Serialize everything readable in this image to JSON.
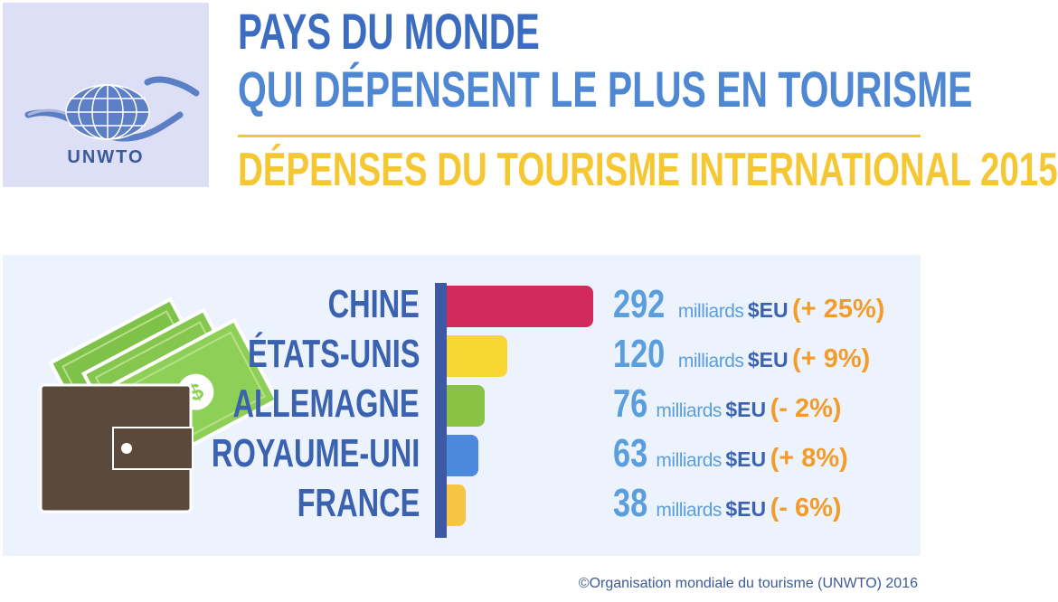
{
  "logo": {
    "text": "UNWTO"
  },
  "header": {
    "title_line1": "PAYS DU MONDE",
    "title_line2": "QUI DÉPENSENT LE PLUS EN TOURISME",
    "subtitle": "DÉPENSES DU TOURISME INTERNATIONAL 2015"
  },
  "colors": {
    "chine": "#d22a5c",
    "etats_unis": "#f8d735",
    "allemagne": "#8ac245",
    "royaume_uni": "#4a89dc",
    "france": "#f6c543",
    "axis": "#3e59a4",
    "accent_change": "#f39c2c"
  },
  "chart_data": {
    "type": "bar",
    "orientation": "horizontal",
    "categories": [
      "CHINE",
      "ÉTATS-UNIS",
      "ALLEMAGNE",
      "ROYAUME-UNI",
      "FRANCE"
    ],
    "values": [
      292,
      120,
      76,
      63,
      38
    ],
    "value_labels": [
      {
        "number": "292",
        "unit": "milliards",
        "currency": "$EU",
        "change": "(+ 25%)"
      },
      {
        "number": "120",
        "unit": "milliards",
        "currency": "$EU",
        "change": "(+ 9%)"
      },
      {
        "number": "76",
        "unit": "milliards",
        "currency": "$EU",
        "change": "(- 2%)"
      },
      {
        "number": "63",
        "unit": "milliards",
        "currency": "$EU",
        "change": "(+ 8%)"
      },
      {
        "number": "38",
        "unit": "milliards",
        "currency": "$EU",
        "change": "(- 6%)"
      }
    ],
    "title": "DÉPENSES DU TOURISME INTERNATIONAL 2015",
    "xlim": [
      0,
      292
    ]
  },
  "wallet_icon": {
    "icon": "wallet-with-banknotes-icon",
    "note_symbol": "$"
  },
  "footer": {
    "copyright": "©Organisation mondiale du tourisme (UNWTO) 2016"
  }
}
